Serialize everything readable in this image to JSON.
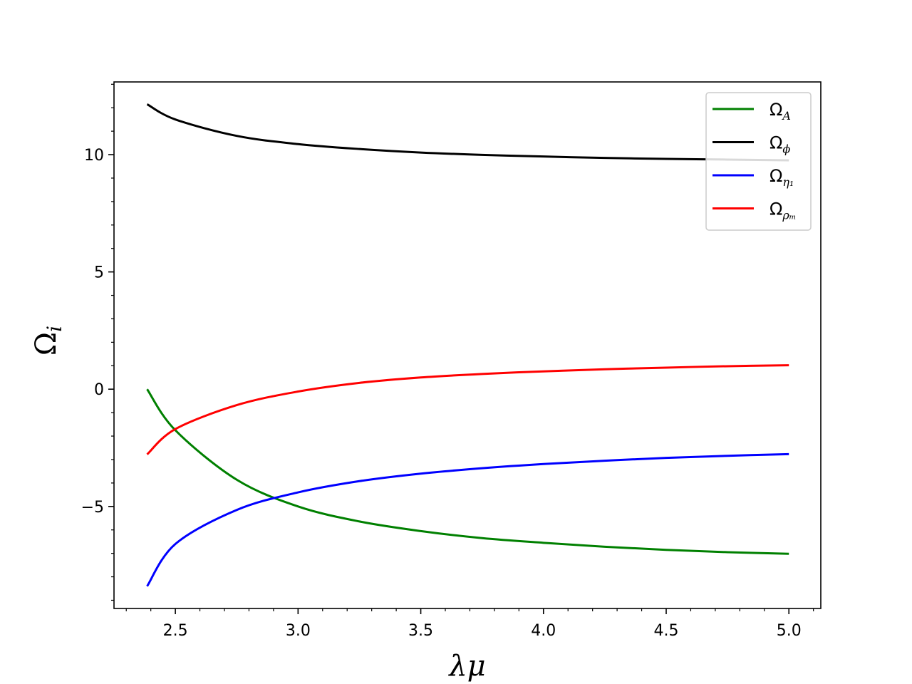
{
  "chart_data": {
    "type": "line",
    "xlabel": "λμ",
    "ylabel": "Ω",
    "ylabel_sub": "i",
    "xlim": [
      2.25,
      5.13
    ],
    "ylim": [
      -9.35,
      13.1
    ],
    "x_ticks": [
      {
        "value": 2.5,
        "label": "2.5"
      },
      {
        "value": 3.0,
        "label": "3.0"
      },
      {
        "value": 3.5,
        "label": "3.5"
      },
      {
        "value": 4.0,
        "label": "4.0"
      },
      {
        "value": 4.5,
        "label": "4.5"
      },
      {
        "value": 5.0,
        "label": "5.0"
      }
    ],
    "y_ticks": [
      {
        "value": -5,
        "label": "−5"
      },
      {
        "value": 0,
        "label": "0"
      },
      {
        "value": 5,
        "label": "5"
      },
      {
        "value": 10,
        "label": "10"
      }
    ],
    "x_minor_step": 0.1,
    "y_minor_step": 1,
    "grid": false,
    "legend_position": "top-right",
    "x": [
      2.385,
      2.5,
      2.75,
      3.0,
      3.25,
      3.5,
      3.75,
      4.0,
      4.25,
      4.5,
      4.75,
      5.0
    ],
    "series": [
      {
        "name": "Ω",
        "sub": "A",
        "color": "#008000",
        "values": [
          0.0,
          -1.75,
          -3.86,
          -5.0,
          -5.64,
          -6.05,
          -6.35,
          -6.55,
          -6.72,
          -6.85,
          -6.95,
          -7.02
        ]
      },
      {
        "name": "Ω",
        "sub": "ϕ",
        "color": "#000000",
        "values": [
          12.15,
          11.5,
          10.8,
          10.45,
          10.24,
          10.09,
          9.99,
          9.92,
          9.86,
          9.82,
          9.79,
          9.76
        ]
      },
      {
        "name": "Ω",
        "sub": "η₁",
        "color": "#0000ff",
        "values": [
          -8.4,
          -6.6,
          -5.15,
          -4.4,
          -3.92,
          -3.6,
          -3.37,
          -3.19,
          -3.05,
          -2.93,
          -2.84,
          -2.77
        ]
      },
      {
        "name": "Ω",
        "sub": "ρₘ",
        "color": "#ff0000",
        "values": [
          -2.78,
          -1.7,
          -0.68,
          -0.1,
          0.27,
          0.5,
          0.65,
          0.76,
          0.85,
          0.92,
          0.98,
          1.02
        ]
      }
    ]
  }
}
